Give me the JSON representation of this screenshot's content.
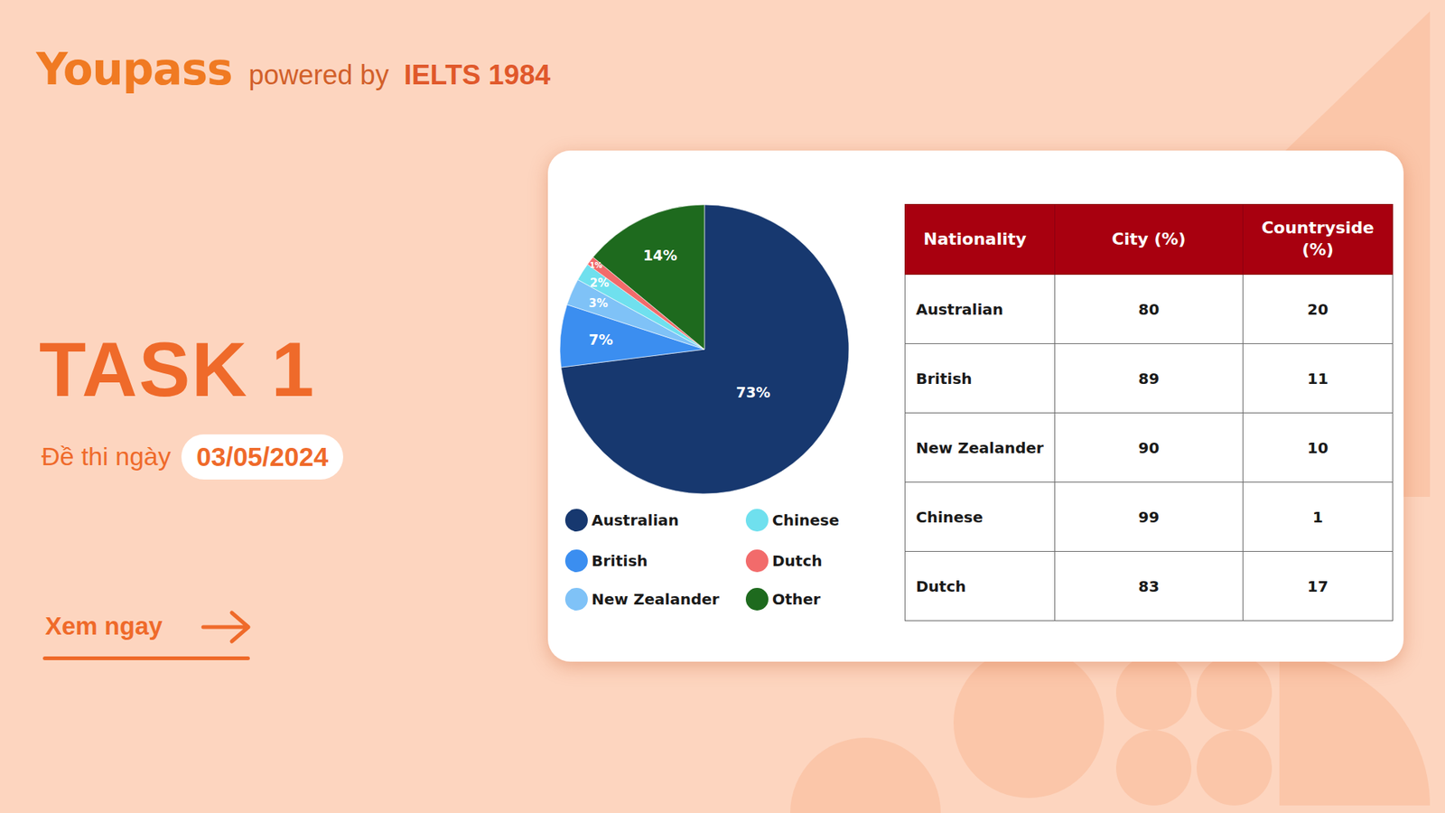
{
  "header": {
    "brand": "Youpass",
    "powered_by": "powered by",
    "partner": "IELTS 1984"
  },
  "task": "TASK 1",
  "date_label": "Đề thi ngày",
  "date": "03/05/2024",
  "cta": "Xem ngay",
  "chart_data": {
    "type": "pie",
    "categories": [
      "Australian",
      "British",
      "New Zealander",
      "Chinese",
      "Dutch",
      "Other"
    ],
    "values": [
      73,
      7,
      3,
      2,
      1,
      14
    ],
    "value_labels": [
      "73%",
      "7%",
      "3%",
      "2%",
      "1%",
      "14%"
    ],
    "colors": [
      "#17386f",
      "#3b8ef0",
      "#7fc2f7",
      "#6fe0ee",
      "#f26b6b",
      "#1e6a1e"
    ],
    "data_labels": true,
    "legend": "bottom"
  },
  "table": {
    "columns": [
      "Nationality",
      "City (%)",
      "Countryside (%)"
    ],
    "rows": [
      [
        "Australian",
        80,
        20
      ],
      [
        "British",
        89,
        11
      ],
      [
        "New Zealander",
        90,
        10
      ],
      [
        "Chinese",
        99,
        1
      ],
      [
        "Dutch",
        83,
        17
      ]
    ]
  }
}
